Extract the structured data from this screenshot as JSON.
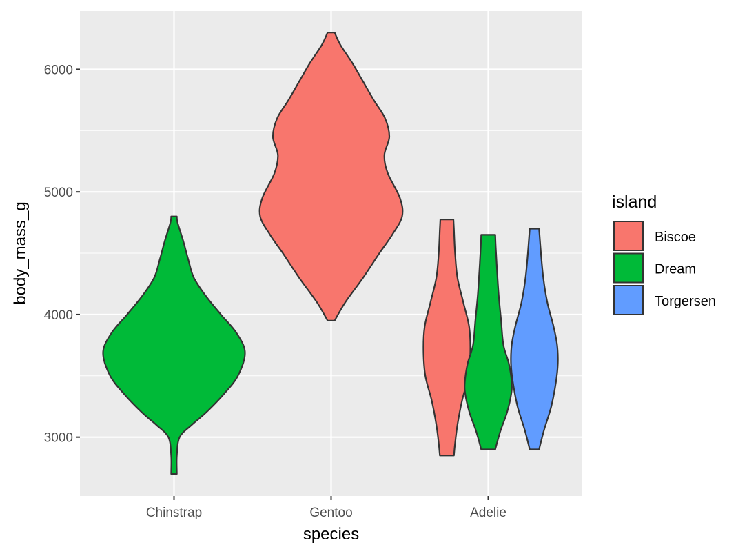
{
  "chart_data": {
    "type": "violin",
    "title": "",
    "xlabel": "species",
    "ylabel": "body_mass_g",
    "ylim": [
      2520,
      6475
    ],
    "yticks": [
      3000,
      4000,
      5000,
      6000
    ],
    "yticks_minor": [
      3500,
      4500,
      5500
    ],
    "grid": true,
    "categories": [
      "Chinstrap",
      "Gentoo",
      "Adelie"
    ],
    "legend": {
      "title": "island",
      "placement": "right",
      "entries": [
        {
          "label": "Biscoe",
          "color": "#F8766D"
        },
        {
          "label": "Dream",
          "color": "#00BA38"
        },
        {
          "label": "Torgersen",
          "color": "#619CFF"
        }
      ]
    },
    "series": [
      {
        "category": "Chinstrap",
        "island": "Dream",
        "color": "#00BA38",
        "min": 2700,
        "max": 4800,
        "profile": [
          [
            2700,
            0.04
          ],
          [
            2850,
            0.04
          ],
          [
            3000,
            0.08
          ],
          [
            3100,
            0.25
          ],
          [
            3200,
            0.45
          ],
          [
            3350,
            0.7
          ],
          [
            3500,
            0.9
          ],
          [
            3690,
            1.0
          ],
          [
            3850,
            0.88
          ],
          [
            4000,
            0.66
          ],
          [
            4150,
            0.45
          ],
          [
            4300,
            0.28
          ],
          [
            4450,
            0.2
          ],
          [
            4600,
            0.13
          ],
          [
            4750,
            0.05
          ],
          [
            4800,
            0.04
          ]
        ]
      },
      {
        "category": "Gentoo",
        "island": "Biscoe",
        "color": "#F8766D",
        "min": 3950,
        "max": 6300,
        "profile": [
          [
            3950,
            0.05
          ],
          [
            4100,
            0.2
          ],
          [
            4300,
            0.45
          ],
          [
            4500,
            0.68
          ],
          [
            4650,
            0.86
          ],
          [
            4800,
            1.0
          ],
          [
            4950,
            0.97
          ],
          [
            5150,
            0.8
          ],
          [
            5300,
            0.75
          ],
          [
            5450,
            0.82
          ],
          [
            5600,
            0.76
          ],
          [
            5750,
            0.6
          ],
          [
            5900,
            0.45
          ],
          [
            6050,
            0.3
          ],
          [
            6200,
            0.13
          ],
          [
            6300,
            0.05
          ]
        ]
      },
      {
        "category": "Adelie",
        "island": "Biscoe",
        "color": "#F8766D",
        "min": 2850,
        "max": 4775,
        "profile": [
          [
            2850,
            0.3
          ],
          [
            2950,
            0.35
          ],
          [
            3100,
            0.45
          ],
          [
            3300,
            0.65
          ],
          [
            3500,
            0.92
          ],
          [
            3700,
            1.0
          ],
          [
            3900,
            0.95
          ],
          [
            4100,
            0.7
          ],
          [
            4300,
            0.45
          ],
          [
            4500,
            0.35
          ],
          [
            4700,
            0.3
          ],
          [
            4775,
            0.28
          ]
        ]
      },
      {
        "category": "Adelie",
        "island": "Dream",
        "color": "#00BA38",
        "min": 2900,
        "max": 4650,
        "profile": [
          [
            2900,
            0.3
          ],
          [
            3050,
            0.52
          ],
          [
            3200,
            0.8
          ],
          [
            3350,
            0.98
          ],
          [
            3450,
            1.0
          ],
          [
            3600,
            0.88
          ],
          [
            3750,
            0.65
          ],
          [
            3950,
            0.55
          ],
          [
            4150,
            0.45
          ],
          [
            4350,
            0.38
          ],
          [
            4550,
            0.32
          ],
          [
            4650,
            0.3
          ]
        ]
      },
      {
        "category": "Adelie",
        "island": "Torgersen",
        "color": "#619CFF",
        "min": 2900,
        "max": 4700,
        "profile": [
          [
            2900,
            0.2
          ],
          [
            3050,
            0.4
          ],
          [
            3250,
            0.72
          ],
          [
            3450,
            0.92
          ],
          [
            3600,
            1.0
          ],
          [
            3750,
            0.97
          ],
          [
            3900,
            0.82
          ],
          [
            4100,
            0.55
          ],
          [
            4300,
            0.38
          ],
          [
            4500,
            0.28
          ],
          [
            4700,
            0.2
          ]
        ]
      }
    ]
  }
}
